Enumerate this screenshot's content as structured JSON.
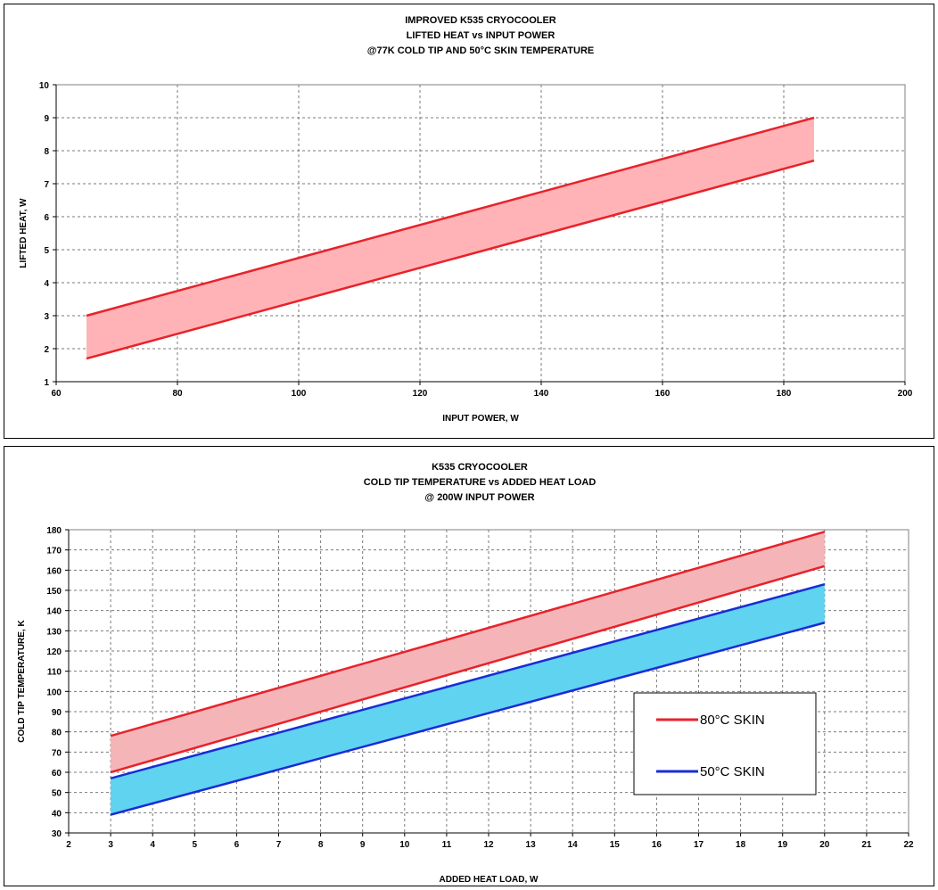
{
  "chart_data": [
    {
      "type": "area",
      "title_lines": [
        "IMPROVED K535 CRYOCOOLER",
        "LIFTED HEAT vs INPUT POWER",
        "@77K COLD TIP AND 50°C SKIN TEMPERATURE"
      ],
      "xlabel": "INPUT POWER, W",
      "ylabel": "LIFTED HEAT, W",
      "xlim": [
        60,
        200
      ],
      "ylim": [
        1,
        10
      ],
      "xticks": [
        60,
        80,
        100,
        120,
        140,
        160,
        180,
        200
      ],
      "yticks": [
        1,
        2,
        3,
        4,
        5,
        6,
        7,
        8,
        9,
        10
      ],
      "grid": true,
      "series": [
        {
          "x": [
            65,
            185
          ],
          "upper": [
            3.0,
            9.0
          ],
          "lower": [
            1.7,
            7.7
          ],
          "line_color": "#e8222a",
          "fill_color": "#ffb3b6"
        }
      ]
    },
    {
      "type": "area",
      "title_lines": [
        "K535 CRYOCOOLER",
        "COLD TIP TEMPERATURE vs ADDED HEAT LOAD",
        "@ 200W INPUT POWER"
      ],
      "xlabel": "ADDED HEAT LOAD, W",
      "ylabel": "COLD TIP TEMPERATURE, K",
      "xlim": [
        2,
        22
      ],
      "ylim": [
        30,
        180
      ],
      "xticks": [
        2,
        3,
        4,
        5,
        6,
        7,
        8,
        9,
        10,
        11,
        12,
        13,
        14,
        15,
        16,
        17,
        18,
        19,
        20,
        21,
        22
      ],
      "yticks": [
        30,
        40,
        50,
        60,
        70,
        80,
        90,
        100,
        110,
        120,
        130,
        140,
        150,
        160,
        170,
        180
      ],
      "grid": true,
      "legend_position": "right",
      "series": [
        {
          "name": "80°C SKIN",
          "x": [
            3,
            20
          ],
          "upper": [
            78,
            179
          ],
          "lower": [
            60,
            162
          ],
          "line_color": "#e8222a",
          "fill_color": "#f5b5b8"
        },
        {
          "name": "50°C SKIN",
          "x": [
            3,
            20
          ],
          "upper": [
            57,
            153
          ],
          "lower": [
            39,
            134
          ],
          "line_color": "#1a2bd6",
          "fill_color": "#5fd3f0"
        }
      ]
    }
  ]
}
